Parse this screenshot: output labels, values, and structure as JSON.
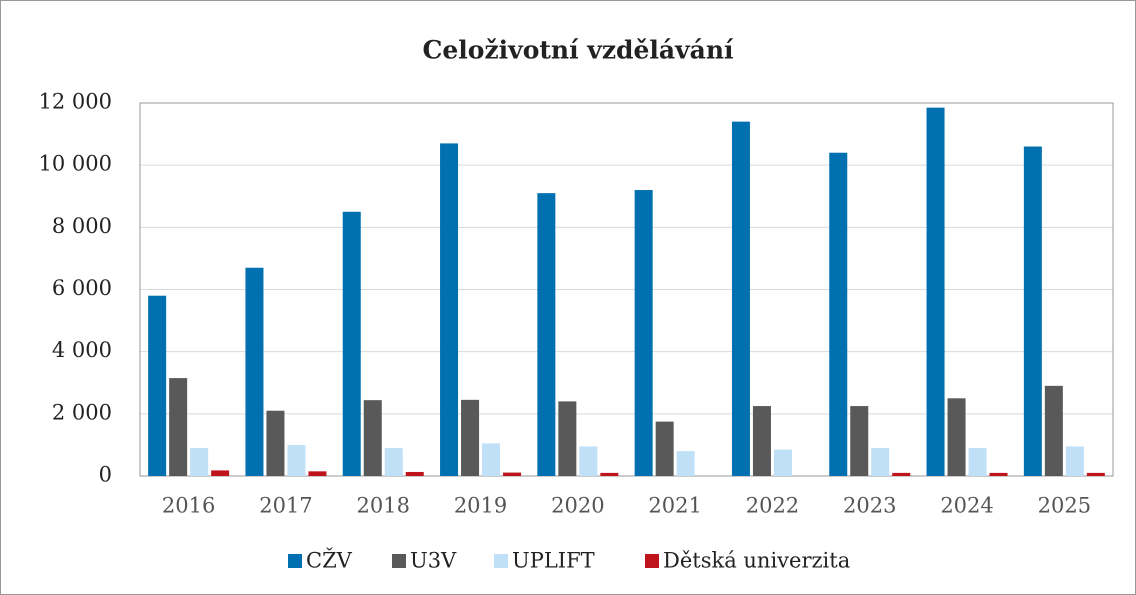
{
  "chart_data": {
    "type": "bar",
    "title": "Celoživotní vzdělávání",
    "categories": [
      "2016",
      "2017",
      "2018",
      "2019",
      "2020",
      "2021",
      "2022",
      "2023",
      "2024",
      "2025"
    ],
    "series": [
      {
        "name": "CŽV",
        "color": "#0070b0",
        "values": [
          5800,
          6700,
          8500,
          10700,
          9100,
          9200,
          11400,
          10400,
          11850,
          10600
        ]
      },
      {
        "name": "U3V",
        "color": "#595959",
        "values": [
          3150,
          2100,
          2440,
          2450,
          2400,
          1750,
          2250,
          2250,
          2500,
          2900
        ]
      },
      {
        "name": "UPLIFT",
        "color": "#bfe0f7",
        "values": [
          900,
          1000,
          900,
          1050,
          950,
          800,
          850,
          900,
          900,
          950
        ]
      },
      {
        "name": "Dětská univerzita",
        "color": "#c0141c",
        "values": [
          180,
          150,
          130,
          110,
          100,
          0,
          0,
          100,
          100,
          100
        ]
      }
    ],
    "ylim": [
      0,
      12000
    ],
    "yticks": [
      0,
      {
        "value": 2000,
        "label": "2 000"
      },
      {
        "value": 4000,
        "label": "4 000"
      },
      {
        "value": 6000,
        "label": "6 000"
      },
      {
        "value": 8000,
        "label": "8 000"
      },
      {
        "value": 10000,
        "label": "10 000"
      },
      {
        "value": 12000,
        "label": "12 000"
      }
    ],
    "grid": true,
    "legend": "bottom"
  }
}
